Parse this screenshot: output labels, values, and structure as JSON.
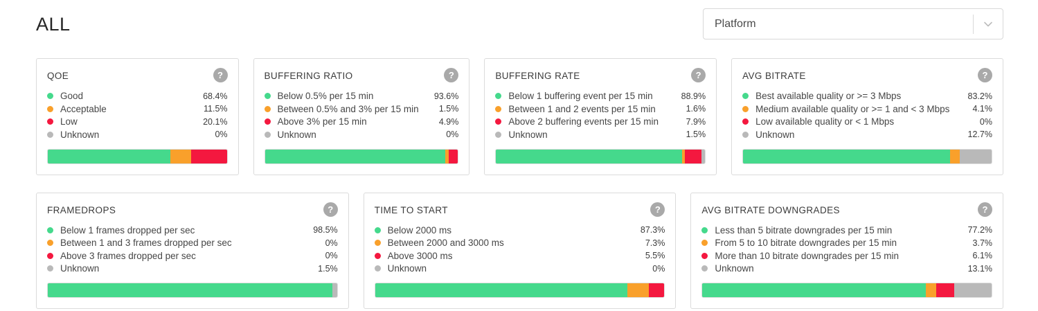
{
  "page": {
    "title": "ALL"
  },
  "filter": {
    "label": "Platform"
  },
  "icons": {
    "help": "?"
  },
  "colors": {
    "good": "#45d98c",
    "warn": "#f9a02b",
    "bad": "#f4183f",
    "unknown": "#b9b9b9"
  },
  "cards": [
    {
      "title": "QOE",
      "metrics": [
        {
          "label": "Good",
          "value": "68.4%",
          "pct": 68.4,
          "color": "good"
        },
        {
          "label": "Acceptable",
          "value": "11.5%",
          "pct": 11.5,
          "color": "warn"
        },
        {
          "label": "Low",
          "value": "20.1%",
          "pct": 20.1,
          "color": "bad"
        },
        {
          "label": "Unknown",
          "value": "0%",
          "pct": 0,
          "color": "unknown"
        }
      ]
    },
    {
      "title": "BUFFERING RATIO",
      "metrics": [
        {
          "label": "Below 0.5% per 15 min",
          "value": "93.6%",
          "pct": 93.6,
          "color": "good"
        },
        {
          "label": "Between 0.5% and 3% per 15 min",
          "value": "1.5%",
          "pct": 1.5,
          "color": "warn"
        },
        {
          "label": "Above 3% per 15 min",
          "value": "4.9%",
          "pct": 4.9,
          "color": "bad"
        },
        {
          "label": "Unknown",
          "value": "0%",
          "pct": 0,
          "color": "unknown"
        }
      ]
    },
    {
      "title": "BUFFERING RATE",
      "metrics": [
        {
          "label": "Below 1 buffering event per 15 min",
          "value": "88.9%",
          "pct": 88.9,
          "color": "good"
        },
        {
          "label": "Between 1 and 2 events per 15 min",
          "value": "1.6%",
          "pct": 1.6,
          "color": "warn"
        },
        {
          "label": "Above 2 buffering events per 15 min",
          "value": "7.9%",
          "pct": 7.9,
          "color": "bad"
        },
        {
          "label": "Unknown",
          "value": "1.5%",
          "pct": 1.5,
          "color": "unknown"
        }
      ]
    },
    {
      "title": "AVG BITRATE",
      "metrics": [
        {
          "label": "Best available quality or >= 3 Mbps",
          "value": "83.2%",
          "pct": 83.2,
          "color": "good"
        },
        {
          "label": "Medium available quality or >= 1 and < 3 Mbps",
          "value": "4.1%",
          "pct": 4.1,
          "color": "warn"
        },
        {
          "label": "Low available quality or < 1 Mbps",
          "value": "0%",
          "pct": 0,
          "color": "bad"
        },
        {
          "label": "Unknown",
          "value": "12.7%",
          "pct": 12.7,
          "color": "unknown"
        }
      ]
    },
    {
      "title": "FRAMEDROPS",
      "metrics": [
        {
          "label": "Below 1 frames dropped per sec",
          "value": "98.5%",
          "pct": 98.5,
          "color": "good"
        },
        {
          "label": "Between 1 and 3 frames dropped per sec",
          "value": "0%",
          "pct": 0,
          "color": "warn"
        },
        {
          "label": "Above 3 frames dropped per sec",
          "value": "0%",
          "pct": 0,
          "color": "bad"
        },
        {
          "label": "Unknown",
          "value": "1.5%",
          "pct": 1.5,
          "color": "unknown"
        }
      ]
    },
    {
      "title": "TIME TO START",
      "metrics": [
        {
          "label": "Below 2000 ms",
          "value": "87.3%",
          "pct": 87.3,
          "color": "good"
        },
        {
          "label": "Between 2000 and 3000 ms",
          "value": "7.3%",
          "pct": 7.3,
          "color": "warn"
        },
        {
          "label": "Above 3000 ms",
          "value": "5.5%",
          "pct": 5.5,
          "color": "bad"
        },
        {
          "label": "Unknown",
          "value": "0%",
          "pct": 0,
          "color": "unknown"
        }
      ]
    },
    {
      "title": "AVG BITRATE DOWNGRADES",
      "metrics": [
        {
          "label": "Less than 5 bitrate downgrades per 15 min",
          "value": "77.2%",
          "pct": 77.2,
          "color": "good"
        },
        {
          "label": "From 5 to 10 bitrate downgrades per 15 min",
          "value": "3.7%",
          "pct": 3.7,
          "color": "warn"
        },
        {
          "label": "More than 10 bitrate downgrades per 15 min",
          "value": "6.1%",
          "pct": 6.1,
          "color": "bad"
        },
        {
          "label": "Unknown",
          "value": "13.1%",
          "pct": 13.1,
          "color": "unknown"
        }
      ]
    }
  ]
}
